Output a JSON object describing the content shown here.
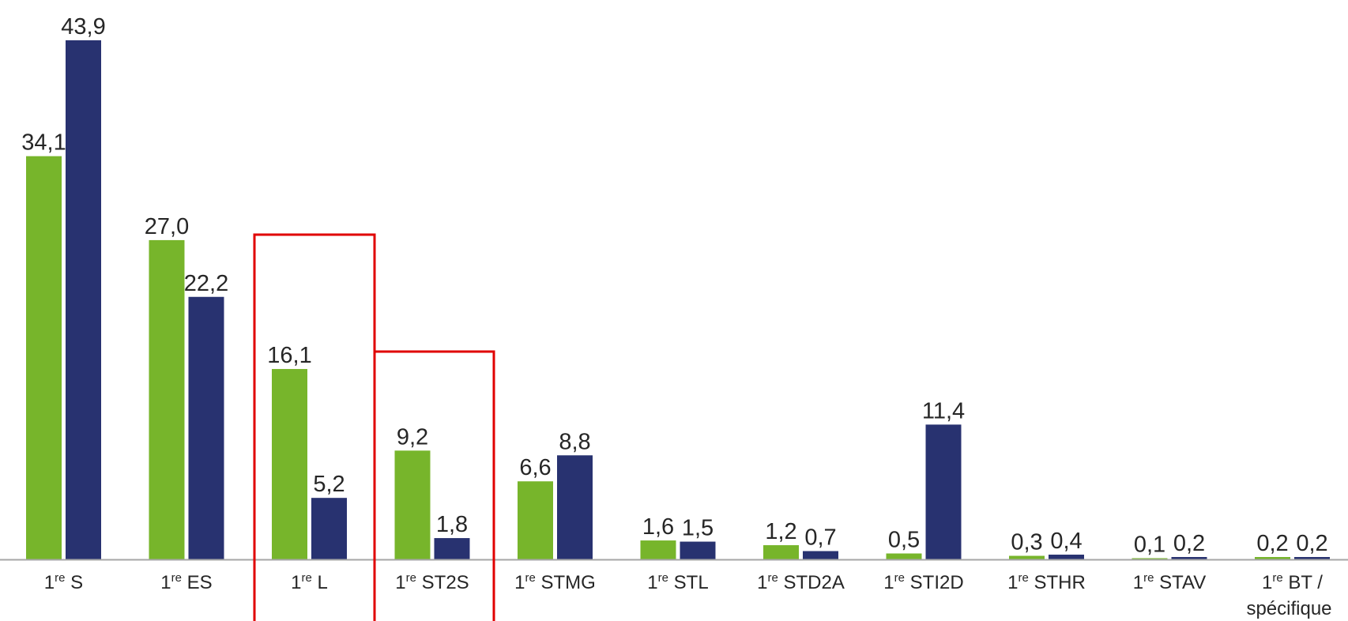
{
  "chart_data": {
    "type": "bar",
    "categories": [
      {
        "base": "1",
        "sup": "re",
        "rest": " S",
        "line2": ""
      },
      {
        "base": "1",
        "sup": "re",
        "rest": " ES",
        "line2": ""
      },
      {
        "base": "1",
        "sup": "re",
        "rest": " L",
        "line2": ""
      },
      {
        "base": "1",
        "sup": "re",
        "rest": " ST2S",
        "line2": ""
      },
      {
        "base": "1",
        "sup": "re",
        "rest": " STMG",
        "line2": ""
      },
      {
        "base": "1",
        "sup": "re",
        "rest": " STL",
        "line2": ""
      },
      {
        "base": "1",
        "sup": "re",
        "rest": " STD2A",
        "line2": ""
      },
      {
        "base": "1",
        "sup": "re",
        "rest": " STI2D",
        "line2": ""
      },
      {
        "base": "1",
        "sup": "re",
        "rest": " STHR",
        "line2": ""
      },
      {
        "base": "1",
        "sup": "re",
        "rest": " STAV",
        "line2": ""
      },
      {
        "base": "1",
        "sup": "re",
        "rest": " BT /",
        "line2": "spécifique"
      }
    ],
    "series": [
      {
        "color": "#77b52b",
        "values": [
          34.1,
          27.0,
          16.1,
          9.2,
          6.6,
          1.6,
          1.2,
          0.5,
          0.3,
          0.1,
          0.2
        ],
        "labels": [
          "34,1",
          "27,0",
          "16,1",
          "9,2",
          "6,6",
          "1,6",
          "1,2",
          "0,5",
          "0,3",
          "0,1",
          "0,2"
        ]
      },
      {
        "color": "#283270",
        "values": [
          43.9,
          22.2,
          5.2,
          1.8,
          8.8,
          1.5,
          0.7,
          11.4,
          0.4,
          0.2,
          0.2
        ],
        "labels": [
          "43,9",
          "22,2",
          "5,2",
          "1,8",
          "8,8",
          "1,5",
          "0,7",
          "11,4",
          "0,4",
          "0,2",
          "0,2"
        ]
      }
    ],
    "ylim": [
      0,
      43.9
    ],
    "grid": false,
    "legend": "none",
    "axis_color": "#a6a6a6",
    "highlight_color": "#e00000",
    "highlights": [
      {
        "categories": [
          "1re L"
        ]
      },
      {
        "categories": [
          "1re ST2S"
        ]
      }
    ]
  }
}
